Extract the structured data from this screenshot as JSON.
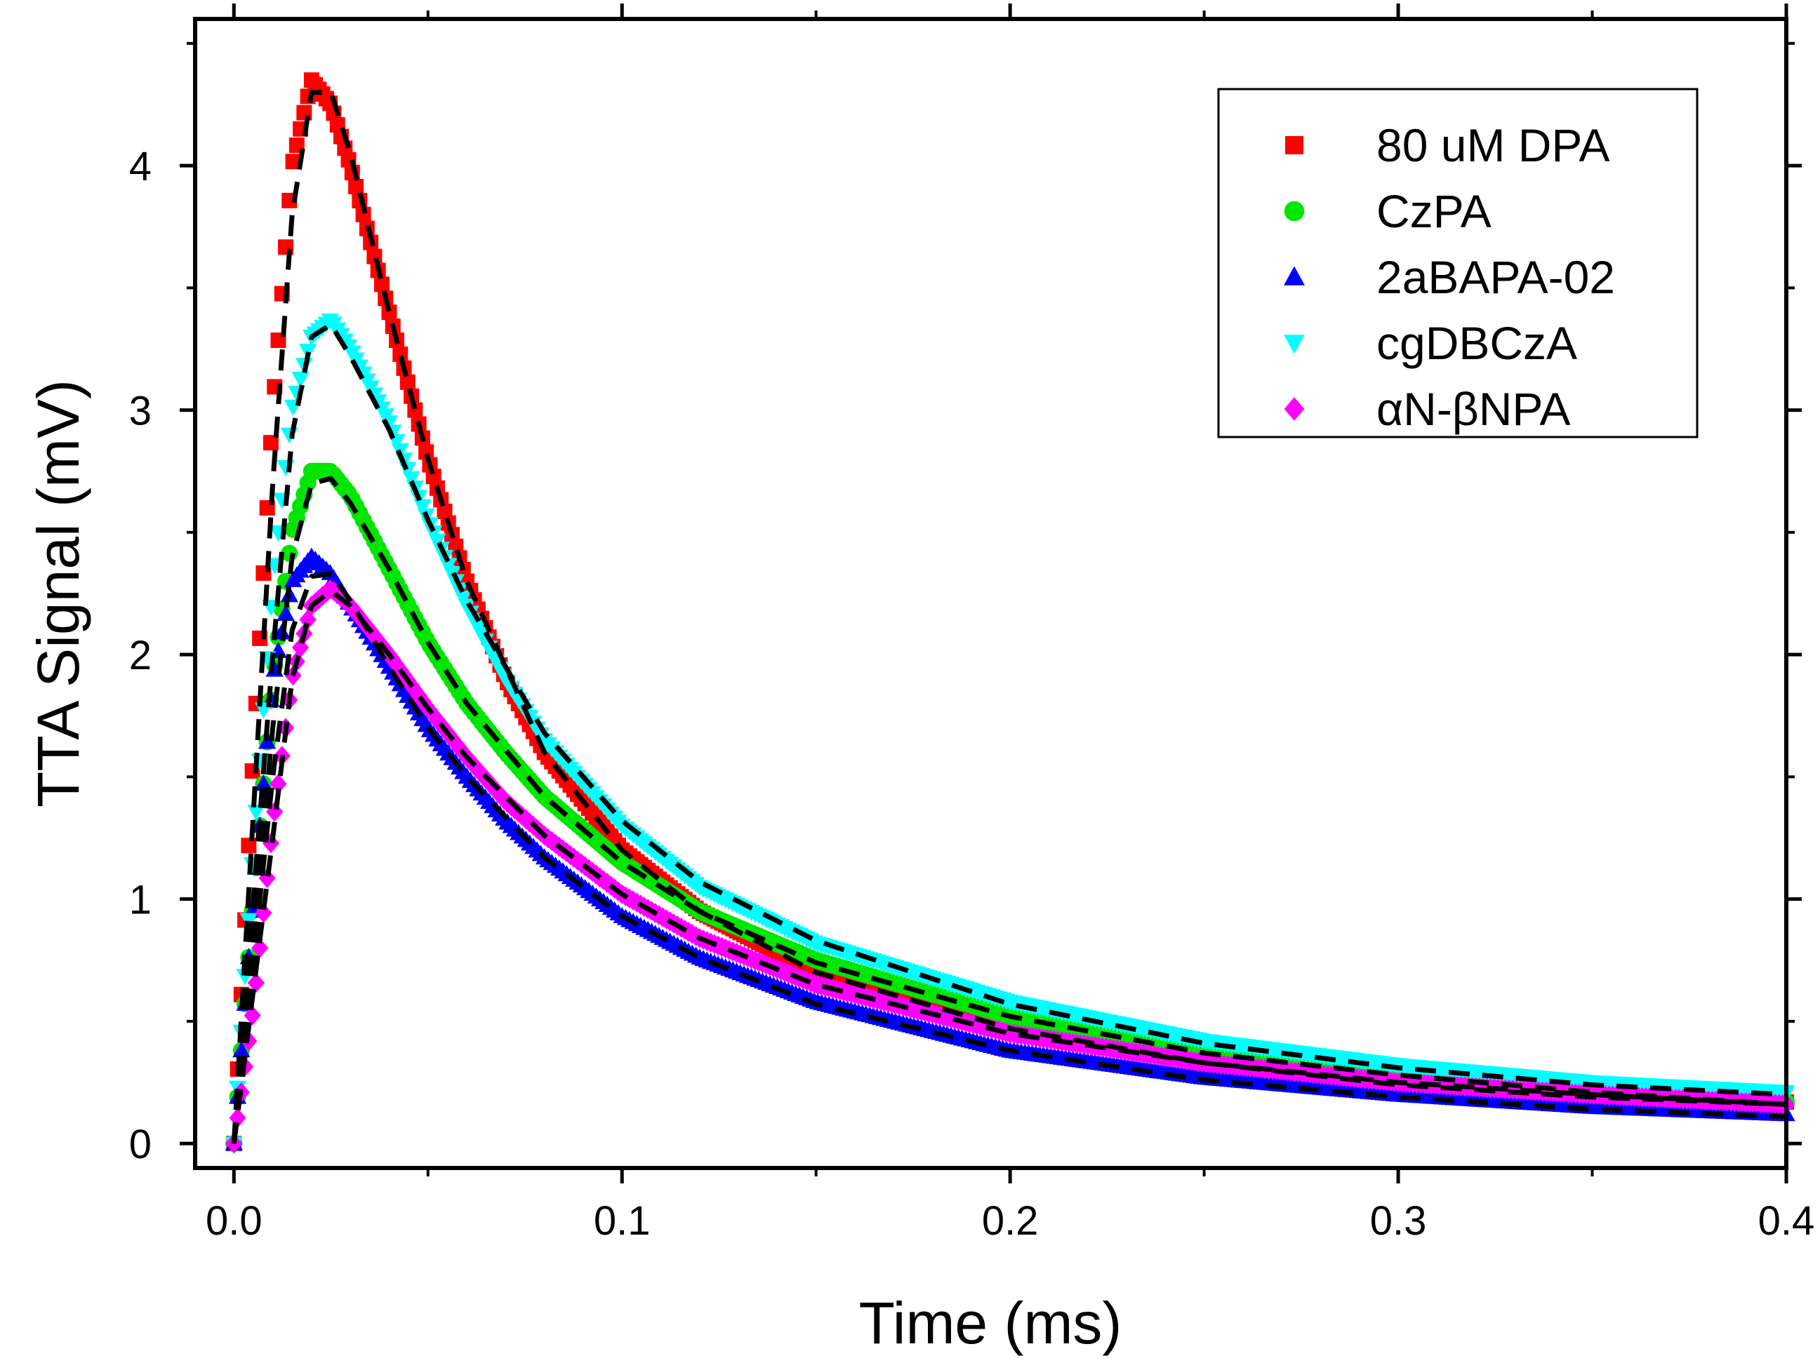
{
  "chart_data": {
    "type": "scatter",
    "xlabel": "Time (ms)",
    "ylabel": "TTA Signal (mV)",
    "xlim": [
      -0.01,
      0.4
    ],
    "ylim": [
      -0.1,
      4.6
    ],
    "xticks": [
      0.0,
      0.1,
      0.2,
      0.3,
      0.4
    ],
    "xtick_labels": [
      "0.0",
      "0.1",
      "0.2",
      "0.3",
      "0.4"
    ],
    "yticks": [
      0,
      1,
      2,
      3,
      4
    ],
    "ytick_labels": [
      "0",
      "1",
      "2",
      "3",
      "4"
    ],
    "legend_position": "top-right",
    "fit_line_color": "#000000",
    "series": [
      {
        "name": "80 uM DPA",
        "marker": "square",
        "color": "#ff0000",
        "x": [
          0.0,
          0.005,
          0.01,
          0.015,
          0.02,
          0.025,
          0.03,
          0.04,
          0.05,
          0.06,
          0.07,
          0.08,
          0.1,
          0.12,
          0.15,
          0.2,
          0.25,
          0.3,
          0.35,
          0.4
        ],
        "values": [
          0.0,
          1.6,
          3.0,
          4.0,
          4.35,
          4.25,
          4.0,
          3.4,
          2.8,
          2.3,
          1.9,
          1.6,
          1.2,
          0.95,
          0.7,
          0.48,
          0.33,
          0.24,
          0.19,
          0.17
        ]
      },
      {
        "name": "CzPA",
        "marker": "circle",
        "color": "#00e600",
        "x": [
          0.0,
          0.005,
          0.01,
          0.015,
          0.02,
          0.025,
          0.03,
          0.04,
          0.05,
          0.06,
          0.07,
          0.08,
          0.1,
          0.12,
          0.15,
          0.2,
          0.25,
          0.3,
          0.35,
          0.4
        ],
        "values": [
          0.0,
          1.0,
          1.9,
          2.5,
          2.75,
          2.75,
          2.65,
          2.35,
          2.05,
          1.8,
          1.6,
          1.42,
          1.15,
          0.95,
          0.75,
          0.52,
          0.38,
          0.28,
          0.21,
          0.17
        ]
      },
      {
        "name": "2aBAPA-02",
        "marker": "triangle-up",
        "color": "#0000ff",
        "x": [
          0.0,
          0.005,
          0.01,
          0.015,
          0.02,
          0.025,
          0.03,
          0.04,
          0.05,
          0.06,
          0.07,
          0.08,
          0.1,
          0.12,
          0.15,
          0.2,
          0.25,
          0.3,
          0.35,
          0.4
        ],
        "values": [
          0.0,
          1.0,
          1.9,
          2.3,
          2.4,
          2.33,
          2.2,
          1.95,
          1.7,
          1.5,
          1.32,
          1.17,
          0.93,
          0.76,
          0.58,
          0.38,
          0.27,
          0.2,
          0.15,
          0.12
        ]
      },
      {
        "name": "cgDBCzA",
        "marker": "triangle-down",
        "color": "#00ffff",
        "x": [
          0.0,
          0.005,
          0.01,
          0.015,
          0.02,
          0.025,
          0.03,
          0.04,
          0.05,
          0.06,
          0.07,
          0.08,
          0.1,
          0.12,
          0.15,
          0.2,
          0.25,
          0.3,
          0.35,
          0.4
        ],
        "values": [
          0.0,
          1.2,
          2.3,
          3.0,
          3.3,
          3.37,
          3.25,
          2.95,
          2.55,
          2.2,
          1.9,
          1.65,
          1.3,
          1.05,
          0.82,
          0.58,
          0.42,
          0.32,
          0.25,
          0.21
        ]
      },
      {
        "name": "αN-βNPA",
        "marker": "diamond",
        "color": "#ff00ff",
        "x": [
          0.0,
          0.005,
          0.01,
          0.015,
          0.02,
          0.025,
          0.03,
          0.04,
          0.05,
          0.06,
          0.07,
          0.08,
          0.1,
          0.12,
          0.15,
          0.2,
          0.25,
          0.3,
          0.35,
          0.4
        ],
        "values": [
          0.0,
          0.55,
          1.3,
          1.9,
          2.2,
          2.27,
          2.2,
          2.0,
          1.78,
          1.58,
          1.4,
          1.26,
          1.02,
          0.84,
          0.65,
          0.45,
          0.33,
          0.25,
          0.2,
          0.16
        ]
      }
    ],
    "fits": [
      {
        "name": "fit-dpa",
        "x": [
          0.0,
          0.01,
          0.015,
          0.02,
          0.025,
          0.03,
          0.04,
          0.05,
          0.06,
          0.08,
          0.1,
          0.12,
          0.15,
          0.2,
          0.25,
          0.3,
          0.35,
          0.4
        ],
        "values": [
          0.0,
          2.7,
          3.8,
          4.3,
          4.3,
          4.05,
          3.4,
          2.8,
          2.3,
          1.6,
          1.2,
          0.95,
          0.7,
          0.47,
          0.33,
          0.24,
          0.19,
          0.16
        ]
      },
      {
        "name": "fit-czpa",
        "x": [
          0.0,
          0.01,
          0.015,
          0.02,
          0.025,
          0.03,
          0.04,
          0.05,
          0.06,
          0.08,
          0.1,
          0.12,
          0.15,
          0.2,
          0.25,
          0.3,
          0.35,
          0.4
        ],
        "values": [
          0.0,
          1.7,
          2.4,
          2.7,
          2.72,
          2.62,
          2.35,
          2.05,
          1.8,
          1.42,
          1.15,
          0.95,
          0.74,
          0.52,
          0.37,
          0.28,
          0.21,
          0.16
        ]
      },
      {
        "name": "fit-2abapa",
        "x": [
          0.0,
          0.01,
          0.015,
          0.02,
          0.025,
          0.03,
          0.04,
          0.05,
          0.06,
          0.08,
          0.1,
          0.12,
          0.15,
          0.2,
          0.25,
          0.3,
          0.35,
          0.4
        ],
        "values": [
          0.0,
          1.5,
          2.1,
          2.32,
          2.33,
          2.22,
          1.95,
          1.7,
          1.5,
          1.17,
          0.93,
          0.76,
          0.57,
          0.38,
          0.26,
          0.19,
          0.14,
          0.11
        ]
      },
      {
        "name": "fit-cgdbcza",
        "x": [
          0.0,
          0.01,
          0.015,
          0.02,
          0.025,
          0.03,
          0.04,
          0.05,
          0.06,
          0.08,
          0.1,
          0.12,
          0.15,
          0.2,
          0.25,
          0.3,
          0.35,
          0.4
        ],
        "values": [
          0.0,
          2.0,
          2.9,
          3.3,
          3.35,
          3.22,
          2.92,
          2.55,
          2.22,
          1.68,
          1.32,
          1.07,
          0.83,
          0.57,
          0.41,
          0.31,
          0.24,
          0.2
        ]
      },
      {
        "name": "fit-anbnpa",
        "x": [
          0.0,
          0.01,
          0.015,
          0.02,
          0.025,
          0.03,
          0.04,
          0.05,
          0.06,
          0.08,
          0.1,
          0.12,
          0.15,
          0.2,
          0.25,
          0.3,
          0.35,
          0.4
        ],
        "values": [
          0.0,
          1.25,
          1.9,
          2.2,
          2.26,
          2.2,
          2.0,
          1.78,
          1.58,
          1.26,
          1.02,
          0.84,
          0.65,
          0.45,
          0.33,
          0.25,
          0.2,
          0.16
        ]
      }
    ]
  }
}
